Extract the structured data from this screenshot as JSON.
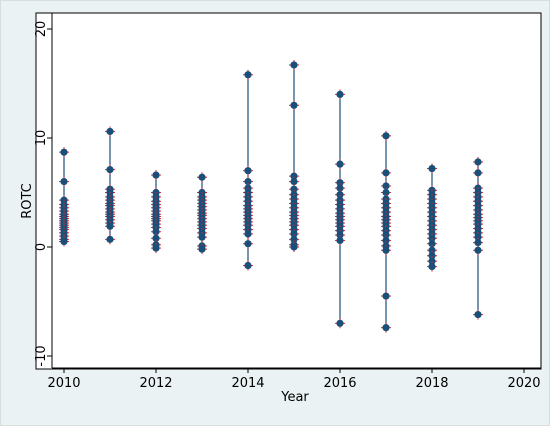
{
  "chart_data": {
    "type": "scatter",
    "title": "",
    "xlabel": "Year",
    "ylabel": "ROTC",
    "xlim": [
      2010,
      2020
    ],
    "ylim": [
      -10,
      20
    ],
    "x_ticks": [
      "2010",
      "2012",
      "2014",
      "2016",
      "2018",
      "2020"
    ],
    "y_ticks": [
      "-10",
      "0",
      "10",
      "20"
    ],
    "grid": false,
    "legend": "none",
    "colors": {
      "point": "#1a4f7a",
      "range_line": "#1a4f7a",
      "marker": "#e0262b",
      "plot_bg": "#ffffff",
      "outer_bg": "#eaf2f3"
    },
    "series": [
      {
        "x": 2010,
        "min": 0.5,
        "max": 8.7,
        "points": [
          8.7,
          6.0,
          4.3,
          3.9,
          3.6,
          3.3,
          3.0,
          2.8,
          2.6,
          2.4,
          2.2,
          2.0,
          1.8,
          1.6,
          1.3,
          1.0,
          0.7,
          0.5
        ]
      },
      {
        "x": 2011,
        "min": 0.7,
        "max": 10.6,
        "points": [
          10.6,
          7.1,
          5.3,
          5.0,
          4.6,
          4.3,
          4.0,
          3.8,
          3.5,
          3.2,
          3.0,
          2.8,
          2.5,
          2.2,
          1.9,
          0.7
        ]
      },
      {
        "x": 2012,
        "min": -0.1,
        "max": 6.6,
        "points": [
          6.6,
          5.0,
          4.6,
          4.2,
          3.9,
          3.6,
          3.3,
          3.0,
          2.8,
          2.6,
          2.4,
          2.1,
          1.8,
          1.4,
          0.8,
          0.2,
          -0.1
        ]
      },
      {
        "x": 2013,
        "min": -0.2,
        "max": 6.4,
        "points": [
          6.4,
          5.0,
          4.6,
          4.3,
          4.0,
          3.7,
          3.4,
          3.1,
          2.9,
          2.6,
          2.3,
          2.0,
          1.7,
          1.3,
          0.9,
          0.1,
          -0.2
        ]
      },
      {
        "x": 2014,
        "min": -1.7,
        "max": 15.8,
        "points": [
          15.8,
          7.0,
          6.0,
          5.4,
          5.0,
          4.6,
          4.2,
          3.8,
          3.5,
          3.2,
          2.9,
          2.6,
          2.3,
          2.0,
          1.6,
          1.2,
          0.3,
          -1.7
        ]
      },
      {
        "x": 2015,
        "min": 0.0,
        "max": 16.7,
        "points": [
          16.7,
          13.0,
          6.5,
          6.0,
          5.3,
          4.8,
          4.4,
          4.0,
          3.6,
          3.2,
          2.9,
          2.6,
          2.3,
          2.0,
          1.6,
          1.2,
          0.7,
          0.2,
          0.0
        ]
      },
      {
        "x": 2016,
        "min": -7.0,
        "max": 14.0,
        "points": [
          14.0,
          7.6,
          5.9,
          5.4,
          4.8,
          4.3,
          3.9,
          3.5,
          3.1,
          2.8,
          2.5,
          2.2,
          1.9,
          1.5,
          1.1,
          0.6,
          -7.0
        ]
      },
      {
        "x": 2017,
        "min": -7.4,
        "max": 10.2,
        "points": [
          10.2,
          6.8,
          5.6,
          5.0,
          4.4,
          4.0,
          3.6,
          3.2,
          2.8,
          2.5,
          2.2,
          1.9,
          1.5,
          1.1,
          0.6,
          0.1,
          -0.3,
          -4.5,
          -7.4
        ]
      },
      {
        "x": 2018,
        "min": -1.8,
        "max": 7.2,
        "points": [
          7.2,
          5.2,
          4.8,
          4.4,
          4.0,
          3.6,
          3.2,
          2.8,
          2.4,
          2.0,
          1.6,
          1.2,
          0.8,
          0.3,
          -0.3,
          -0.8,
          -1.3,
          -1.8
        ]
      },
      {
        "x": 2019,
        "min": -6.2,
        "max": 7.8,
        "points": [
          7.8,
          6.8,
          5.4,
          5.0,
          4.6,
          4.2,
          3.8,
          3.4,
          3.0,
          2.7,
          2.4,
          2.1,
          1.7,
          1.3,
          0.9,
          0.4,
          -0.3,
          -6.2
        ]
      }
    ]
  }
}
